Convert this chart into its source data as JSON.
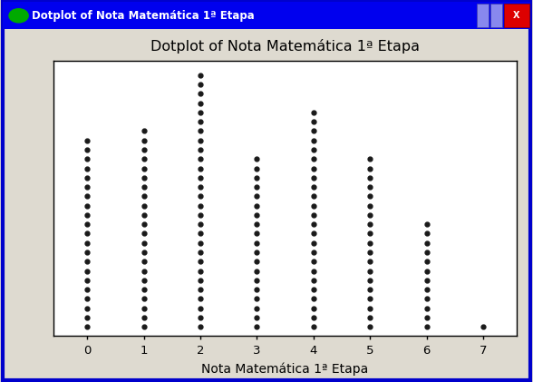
{
  "title": "Dotplot of Nota Matemática 1ª Etapa",
  "xlabel": "Nota Matemática 1ª Etapa",
  "window_title": "Dotplot of Nota Matemática 1ª Etapa",
  "counts": {
    "0": 21,
    "1": 22,
    "2": 28,
    "3": 19,
    "4": 24,
    "5": 19,
    "6": 12,
    "7": 1
  },
  "dot_color": "#1a1a1a",
  "bg_color": "#dedad0",
  "plot_bg": "#ffffff",
  "titlebar_color": "#0000ee",
  "titlebar_text_color": "#ffffff",
  "border_color": "#0000cc",
  "title_fontsize": 11.5,
  "xlabel_fontsize": 10,
  "tick_fontsize": 9.5,
  "dot_size": 3.5,
  "xlim": [
    -0.6,
    7.6
  ],
  "xticks": [
    0,
    1,
    2,
    3,
    4,
    5,
    6,
    7
  ]
}
